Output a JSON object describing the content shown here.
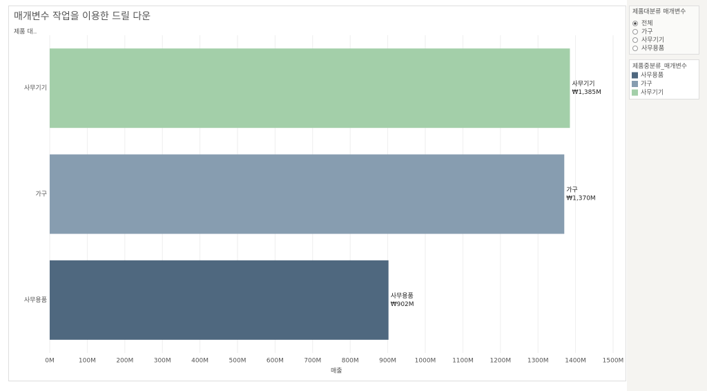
{
  "chart_data": {
    "type": "hbar",
    "title": "매개변수 작업을 이용한 드릴 다운",
    "y_label": "제품 대..",
    "x_label": "매출",
    "categories": [
      "사무기기",
      "가구",
      "사무용품"
    ],
    "values": [
      1385,
      1370,
      902
    ],
    "value_labels": [
      "₩1,385M",
      "₩1,370M",
      "₩902M"
    ],
    "colors": [
      "#a3cfa9",
      "#879db0",
      "#4f687f"
    ],
    "xlim": [
      0,
      1500
    ],
    "xticks": [
      {
        "value": 0,
        "label": "0M"
      },
      {
        "value": 100,
        "label": "100M"
      },
      {
        "value": 200,
        "label": "200M"
      },
      {
        "value": 300,
        "label": "300M"
      },
      {
        "value": 400,
        "label": "400M"
      },
      {
        "value": 500,
        "label": "500M"
      },
      {
        "value": 600,
        "label": "600M"
      },
      {
        "value": 700,
        "label": "700M"
      },
      {
        "value": 800,
        "label": "800M"
      },
      {
        "value": 900,
        "label": "900M"
      },
      {
        "value": 1000,
        "label": "1000M"
      },
      {
        "value": 1100,
        "label": "1100M"
      },
      {
        "value": 1200,
        "label": "1200M"
      },
      {
        "value": 1300,
        "label": "1300M"
      },
      {
        "value": 1400,
        "label": "1400M"
      },
      {
        "value": 1500,
        "label": "1500M"
      }
    ],
    "grid": true
  },
  "parameter": {
    "title": "제품대분류 매개변수",
    "options": [
      "전체",
      "가구",
      "사무기기",
      "사무용품"
    ],
    "selected": 0
  },
  "legend": {
    "title": "제품중분류_매개변수",
    "items": [
      {
        "label": "사무용품",
        "color": "#4f687f"
      },
      {
        "label": "가구",
        "color": "#879db0"
      },
      {
        "label": "사무기기",
        "color": "#a3cfa9"
      }
    ]
  }
}
